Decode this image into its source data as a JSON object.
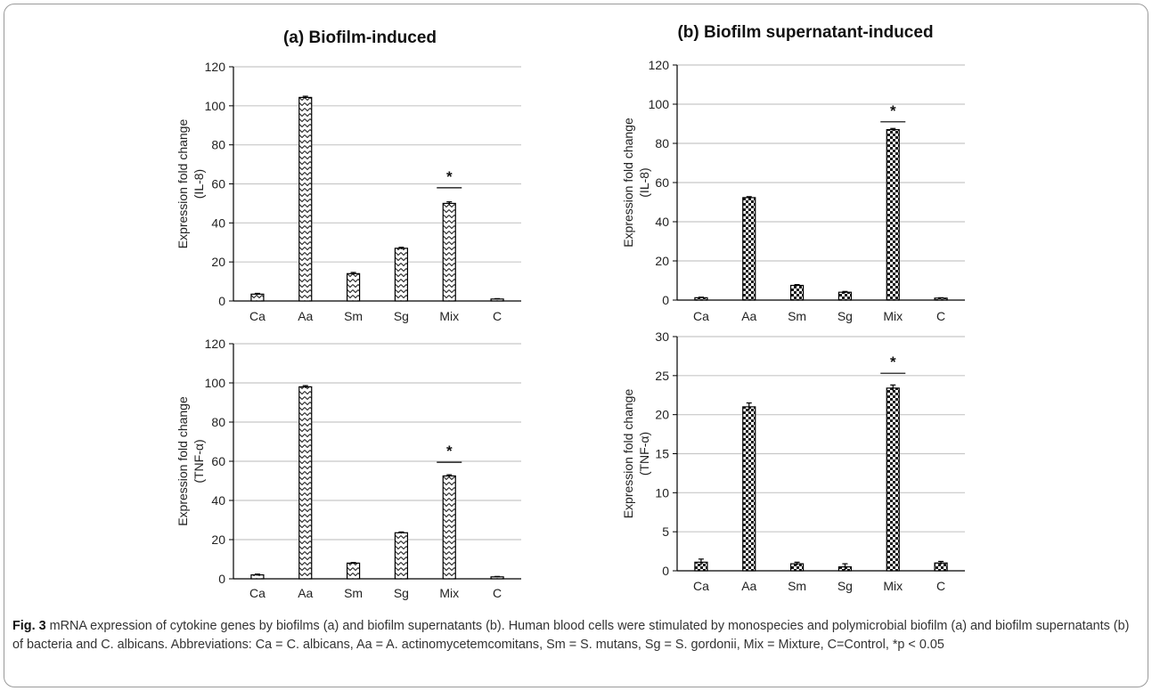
{
  "figure": {
    "panel_a_label": "(a)",
    "panel_a_title": "Biofilm-induced",
    "panel_b_label": "(b)",
    "panel_b_title": "Biofilm supernatant-induced"
  },
  "chart_data": [
    {
      "id": "a-il8",
      "type": "bar",
      "categories": [
        "Ca",
        "Aa",
        "Sm",
        "Sg",
        "Mix",
        "C"
      ],
      "values": [
        3.5,
        104.3,
        14,
        27,
        50,
        1
      ],
      "errors": [
        0.4,
        0.6,
        0.6,
        0.5,
        0.8,
        0.2
      ],
      "ylabel_line1": "Expression fold change",
      "ylabel_line2": "(IL-8)",
      "ylim": [
        0,
        120
      ],
      "yticks": [
        "0",
        "20",
        "40",
        "60",
        "80",
        "100",
        "120"
      ],
      "significance": {
        "category": "Mix",
        "label": "*",
        "line_value": 58
      },
      "pattern": "wave",
      "grid": true
    },
    {
      "id": "b-il8",
      "type": "bar",
      "categories": [
        "Ca",
        "Aa",
        "Sm",
        "Sg",
        "Mix",
        "C"
      ],
      "values": [
        1.2,
        52.3,
        7.5,
        4,
        87,
        1
      ],
      "errors": [
        0.3,
        0.5,
        0.4,
        0.4,
        0.6,
        0.2
      ],
      "ylabel_line1": "Expression fold change",
      "ylabel_line2": "(IL-8)",
      "ylim": [
        0,
        120
      ],
      "yticks": [
        "0",
        "20",
        "40",
        "60",
        "80",
        "100",
        "120"
      ],
      "significance": {
        "category": "Mix",
        "label": "*",
        "line_value": 91
      },
      "pattern": "checker",
      "grid": true
    },
    {
      "id": "a-tnf",
      "type": "bar",
      "categories": [
        "Ca",
        "Aa",
        "Sm",
        "Sg",
        "Mix",
        "C"
      ],
      "values": [
        2,
        98,
        8,
        23.5,
        52.5,
        1
      ],
      "errors": [
        0.4,
        0.6,
        0.3,
        0.4,
        0.6,
        0.2
      ],
      "ylabel_line1": "Expression fold change",
      "ylabel_line2": "(TNF-α)",
      "ylim": [
        0,
        120
      ],
      "yticks": [
        "0",
        "20",
        "40",
        "60",
        "80",
        "100",
        "120"
      ],
      "significance": {
        "category": "Mix",
        "label": "*",
        "line_value": 59.5
      },
      "pattern": "wave",
      "grid": true
    },
    {
      "id": "b-tnf",
      "type": "bar",
      "categories": [
        "Ca",
        "Aa",
        "Sm",
        "Sg",
        "Mix",
        "C"
      ],
      "values": [
        1.1,
        21,
        0.9,
        0.5,
        23.4,
        1
      ],
      "errors": [
        0.4,
        0.5,
        0.2,
        0.4,
        0.4,
        0.2
      ],
      "ylabel_line1": "Expression fold change",
      "ylabel_line2": "(TNF-α)",
      "ylim": [
        0,
        30
      ],
      "yticks": [
        "0",
        "5",
        "10",
        "15",
        "20",
        "25",
        "30"
      ],
      "significance": {
        "category": "Mix",
        "label": "*",
        "line_value": 25.3
      },
      "pattern": "checker",
      "grid": true
    }
  ],
  "caption": {
    "label": "Fig. 3",
    "text": " mRNA expression of cytokine genes by biofilms (a) and biofilm supernatants (b). Human blood cells were stimulated by monospecies and polymicrobial biofilm (a) and biofilm supernatants (b) of bacteria and C. albicans. Abbreviations: Ca = C. albicans, Aa = A. actinomycetemcomitans, Sm = S. mutans, Sg = S. gordonii, Mix = Mixture, C=Control, *p < 0.05"
  }
}
